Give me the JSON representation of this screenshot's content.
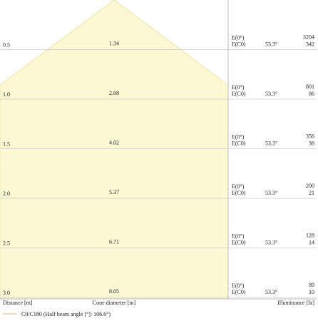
{
  "chart_data": {
    "type": "area",
    "title": "",
    "xlabel": "Cone diameter [m]",
    "ylabel": "Distance [m]",
    "right_label": "Illuminance [lx]",
    "half_beam_angle_deg": 106.6,
    "rows": [
      {
        "distance": "0.5",
        "cone_diameter": "1.34",
        "e0_label": "E(0°)",
        "ec0_label": "E(C0)",
        "angle": "53.3°",
        "e0": "3204",
        "ec0": "342"
      },
      {
        "distance": "1.0",
        "cone_diameter": "2.68",
        "e0_label": "E(0°)",
        "ec0_label": "E(C0)",
        "angle": "53.3°",
        "e0": "801",
        "ec0": "86"
      },
      {
        "distance": "1.5",
        "cone_diameter": "4.02",
        "e0_label": "E(0°)",
        "ec0_label": "E(C0)",
        "angle": "53.3°",
        "e0": "356",
        "ec0": "38"
      },
      {
        "distance": "2.0",
        "cone_diameter": "5.37",
        "e0_label": "E(0°)",
        "ec0_label": "E(C0)",
        "angle": "53.3°",
        "e0": "200",
        "ec0": "21"
      },
      {
        "distance": "2.5",
        "cone_diameter": "6.71",
        "e0_label": "E(0°)",
        "ec0_label": "E(C0)",
        "angle": "53.3°",
        "e0": "128",
        "ec0": "14"
      },
      {
        "distance": "3.0",
        "cone_diameter": "8.05",
        "e0_label": "E(0°)",
        "ec0_label": "E(C0)",
        "angle": "53.3°",
        "e0": "89",
        "ec0": "10"
      }
    ],
    "legend": [
      {
        "label": "C0/C180 (Half beam angle [°]: 106.6°)",
        "color": "#f5b87a"
      }
    ],
    "colors": {
      "cone_fill": "#fbf8d3",
      "cone_edge": "#efe5a8",
      "grid": "#cccccc",
      "divider": "#bbbbbb"
    }
  }
}
